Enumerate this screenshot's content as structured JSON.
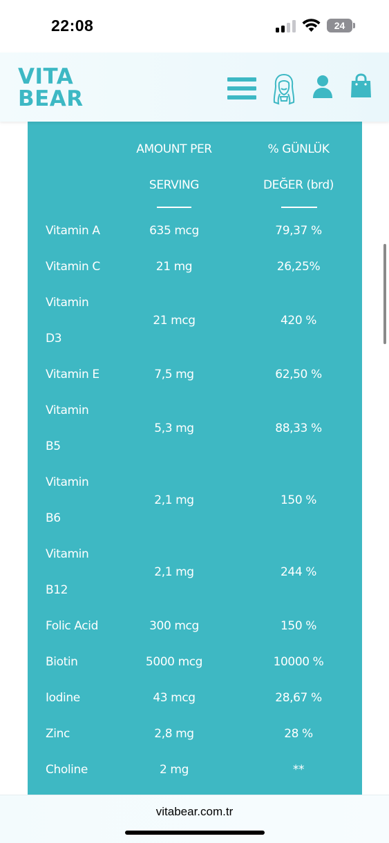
{
  "status_bar": {
    "time": "22:08",
    "battery": "24"
  },
  "header": {
    "logo_line1": "VITA",
    "logo_line2": "BEAR",
    "brand_color": "#3db8c4",
    "icons": [
      "menu-icon",
      "face-icon",
      "user-icon",
      "bag-icon"
    ]
  },
  "nutrition": {
    "panel_color": "#3eb8c3",
    "header_amount_line1": "AMOUNT PER",
    "header_amount_line2": "SERVING",
    "header_pct_line1": "% GÜNLÜK",
    "header_pct_line2": "DEĞER (brd)",
    "rows": [
      {
        "name": "Vitamin A",
        "amount": "635 mcg",
        "pct": "79,37 %"
      },
      {
        "name": "Vitamin C",
        "amount": "21 mg",
        "pct": "26,25%"
      },
      {
        "name": "Vitamin D3",
        "amount": "21 mcg",
        "pct": "420 %"
      },
      {
        "name": "Vitamin E",
        "amount": "7,5 mg",
        "pct": "62,50 %"
      },
      {
        "name": "Vitamin B5",
        "amount": "5,3 mg",
        "pct": "88,33 %"
      },
      {
        "name": "Vitamin B6",
        "amount": "2,1 mg",
        "pct": "150 %"
      },
      {
        "name": "Vitamin B12",
        "amount": "2,1 mg",
        "pct": "244 %"
      },
      {
        "name": "Folic Acid",
        "amount": "300 mcg",
        "pct": "150 %"
      },
      {
        "name": "Biotin",
        "amount": "5000 mcg",
        "pct": "10000 %"
      },
      {
        "name": "Iodine",
        "amount": "43 mcg",
        "pct": "28,67 %"
      },
      {
        "name": "Zinc",
        "amount": "2,8 mg",
        "pct": "28 %"
      },
      {
        "name": "Choline",
        "amount": "2 mg",
        "pct": "**"
      }
    ]
  },
  "browser": {
    "url": "vitabear.com.tr"
  }
}
